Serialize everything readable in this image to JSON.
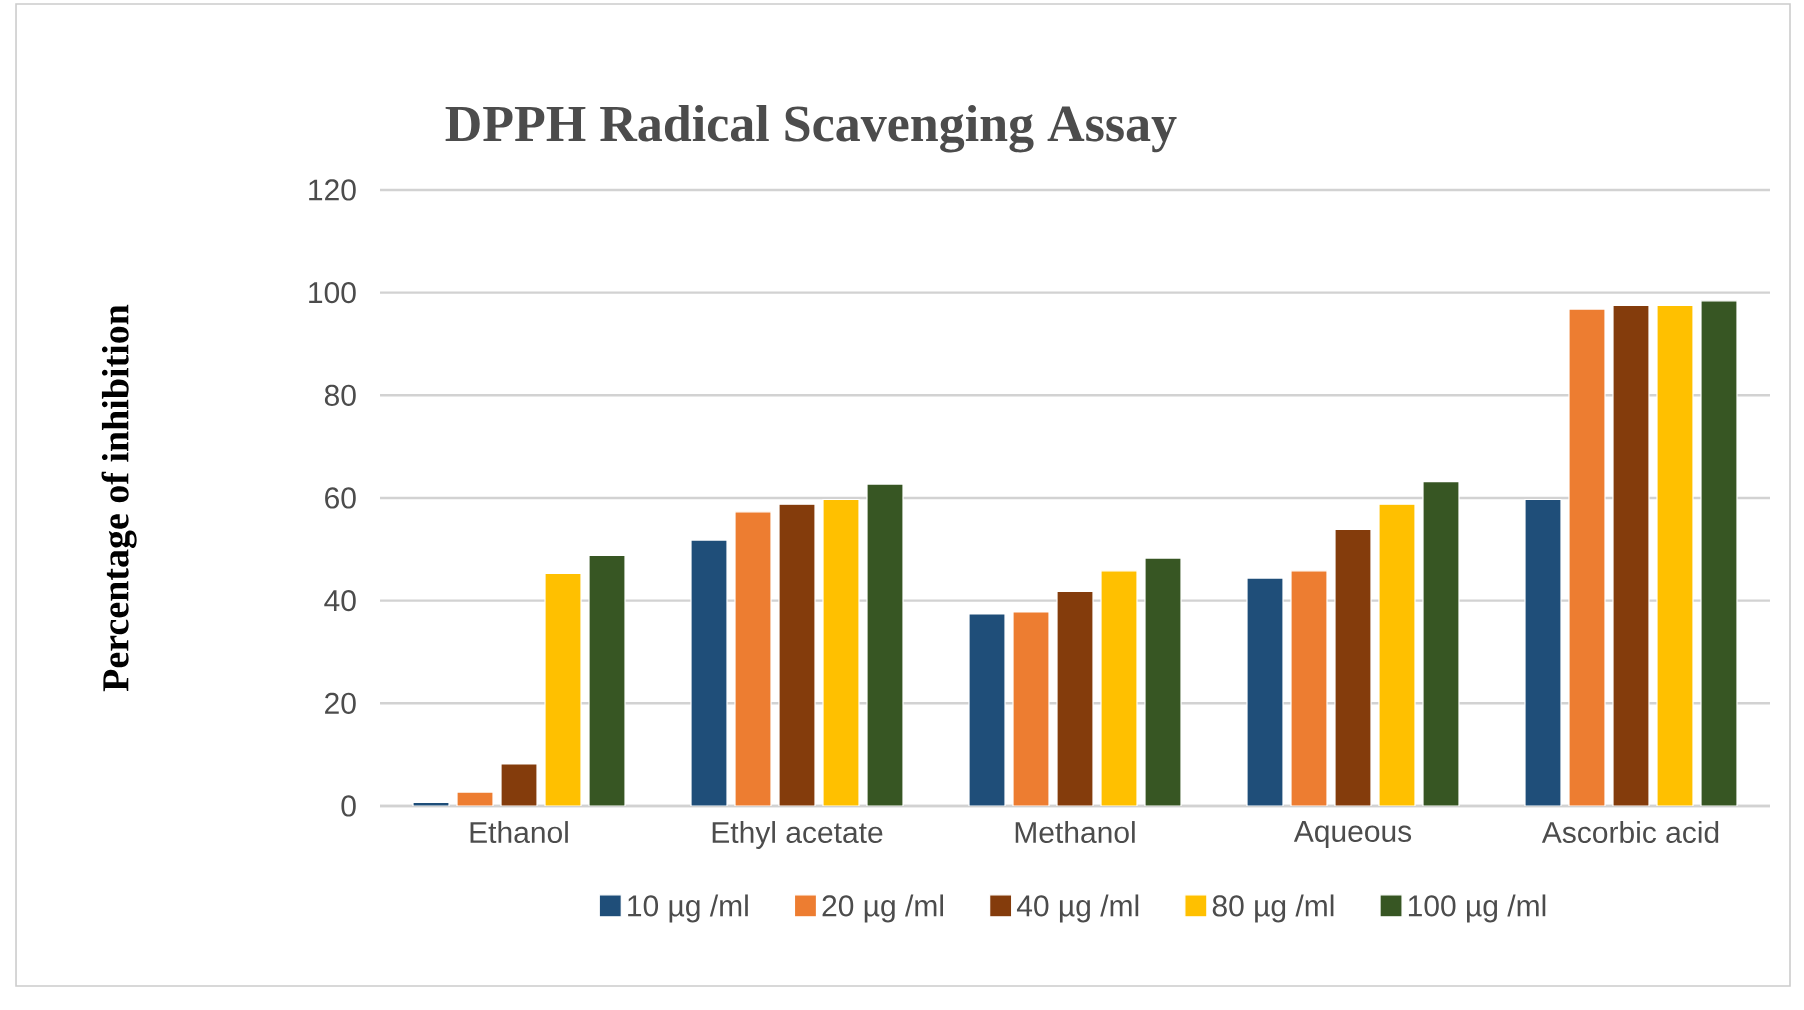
{
  "chart_data": {
    "type": "bar",
    "title": "DPPH Radical Scavenging Assay",
    "ylabel": "Percentage of inhibition",
    "categories": [
      "Ethanol",
      "Ethyl acetate",
      "Methanol",
      "Aqueous",
      "Ascorbic acid"
    ],
    "series": [
      {
        "name": "10 µg /ml",
        "color": "#1f4e79",
        "values": [
          0.7,
          51.8,
          37.4,
          44.4,
          59.7
        ]
      },
      {
        "name": "20 µg /ml",
        "color": "#ed7d31",
        "values": [
          2.7,
          57.3,
          37.8,
          45.8,
          96.8
        ]
      },
      {
        "name": "40 µg /ml",
        "color": "#843c0c",
        "values": [
          8.2,
          58.8,
          41.8,
          53.9,
          97.5
        ]
      },
      {
        "name": "80 µg /ml",
        "color": "#ffc000",
        "values": [
          45.3,
          59.7,
          45.8,
          58.8,
          97.5
        ]
      },
      {
        "name": "100 µg /ml",
        "color": "#375623",
        "values": [
          48.8,
          62.7,
          48.3,
          63.2,
          98.4
        ]
      }
    ],
    "ylim": [
      0,
      120
    ],
    "yticks": [
      0,
      20,
      40,
      60,
      80,
      100,
      120
    ],
    "grid": "y",
    "legend": "bottom"
  }
}
